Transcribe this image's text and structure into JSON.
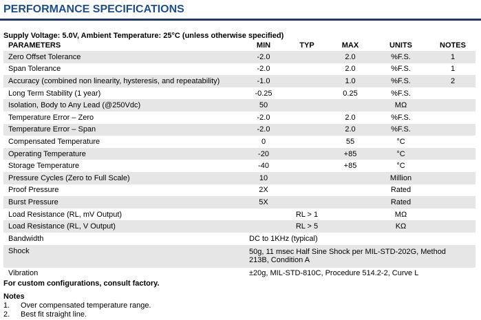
{
  "header": {
    "title": "PERFORMANCE SPECIFICATIONS"
  },
  "conditions": "Supply Voltage: 5.0V, Ambient Temperature: 25°C (unless otherwise specified)",
  "table": {
    "columns": {
      "parameter": "PARAMETERS",
      "min": "MIN",
      "typ": "TYP",
      "max": "MAX",
      "units": "UNITS",
      "notes": "NOTES"
    },
    "rows": [
      {
        "parameter": "Zero Offset Tolerance",
        "min": "-2.0",
        "max": "2.0",
        "units": "%F.S.",
        "notes": "1"
      },
      {
        "parameter": "Span Tolerance",
        "min": "-2.0",
        "max": "2.0",
        "units": "%F.S.",
        "notes": "1"
      },
      {
        "parameter": "Accuracy (combined non linearity, hysteresis, and repeatability)",
        "min": "-1.0",
        "max": "1.0",
        "units": "%F.S.",
        "notes": "2"
      },
      {
        "parameter": "Long Term Stability (1 year)",
        "min": "-0.25",
        "max": "0.25",
        "units": "%F.S."
      },
      {
        "parameter": "Isolation, Body to Any Lead (@250Vdc)",
        "min": "50",
        "units": "MΩ"
      },
      {
        "parameter": "Temperature Error – Zero",
        "min": "-2.0",
        "max": "2.0",
        "units": "%F.S."
      },
      {
        "parameter": "Temperature Error – Span",
        "min": "-2.0",
        "max": "2.0",
        "units": "%F.S."
      },
      {
        "parameter": "Compensated Temperature",
        "min": "0",
        "max": "55",
        "units": "°C"
      },
      {
        "parameter": "Operating Temperature",
        "min": "-20",
        "max": "+85",
        "units": "°C"
      },
      {
        "parameter": "Storage Temperature",
        "min": "-40",
        "max": "+85",
        "units": "°C"
      },
      {
        "parameter": "Pressure Cycles (Zero to Full Scale)",
        "min": "10",
        "units": "Million"
      },
      {
        "parameter": "Proof Pressure",
        "min": "2X",
        "units": "Rated"
      },
      {
        "parameter": "Burst Pressure",
        "min": "5X",
        "units": "Rated"
      },
      {
        "parameter": "Load Resistance (RL, mV Output)",
        "typ": "RL > 1",
        "units": "MΩ"
      },
      {
        "parameter": "Load Resistance (RL, V Output)",
        "typ": "RL > 5",
        "units": "KΩ"
      },
      {
        "parameter": "Bandwidth",
        "spec": "DC to 1KHz (typical)"
      },
      {
        "parameter": "Shock",
        "spec": "50g, 11 msec Half Sine Shock per MIL-STD-202G, Method 213B, Condition A"
      },
      {
        "parameter": "Vibration",
        "spec": "±20g, MIL-STD-810C, Procedure 514.2-2, Curve L"
      }
    ]
  },
  "footer": "For custom configurations, consult factory.",
  "notes": {
    "title": "Notes",
    "items": [
      {
        "number": "1.",
        "text": "Over compensated temperature range."
      },
      {
        "number": "2.",
        "text": "Best fit straight line."
      }
    ]
  }
}
